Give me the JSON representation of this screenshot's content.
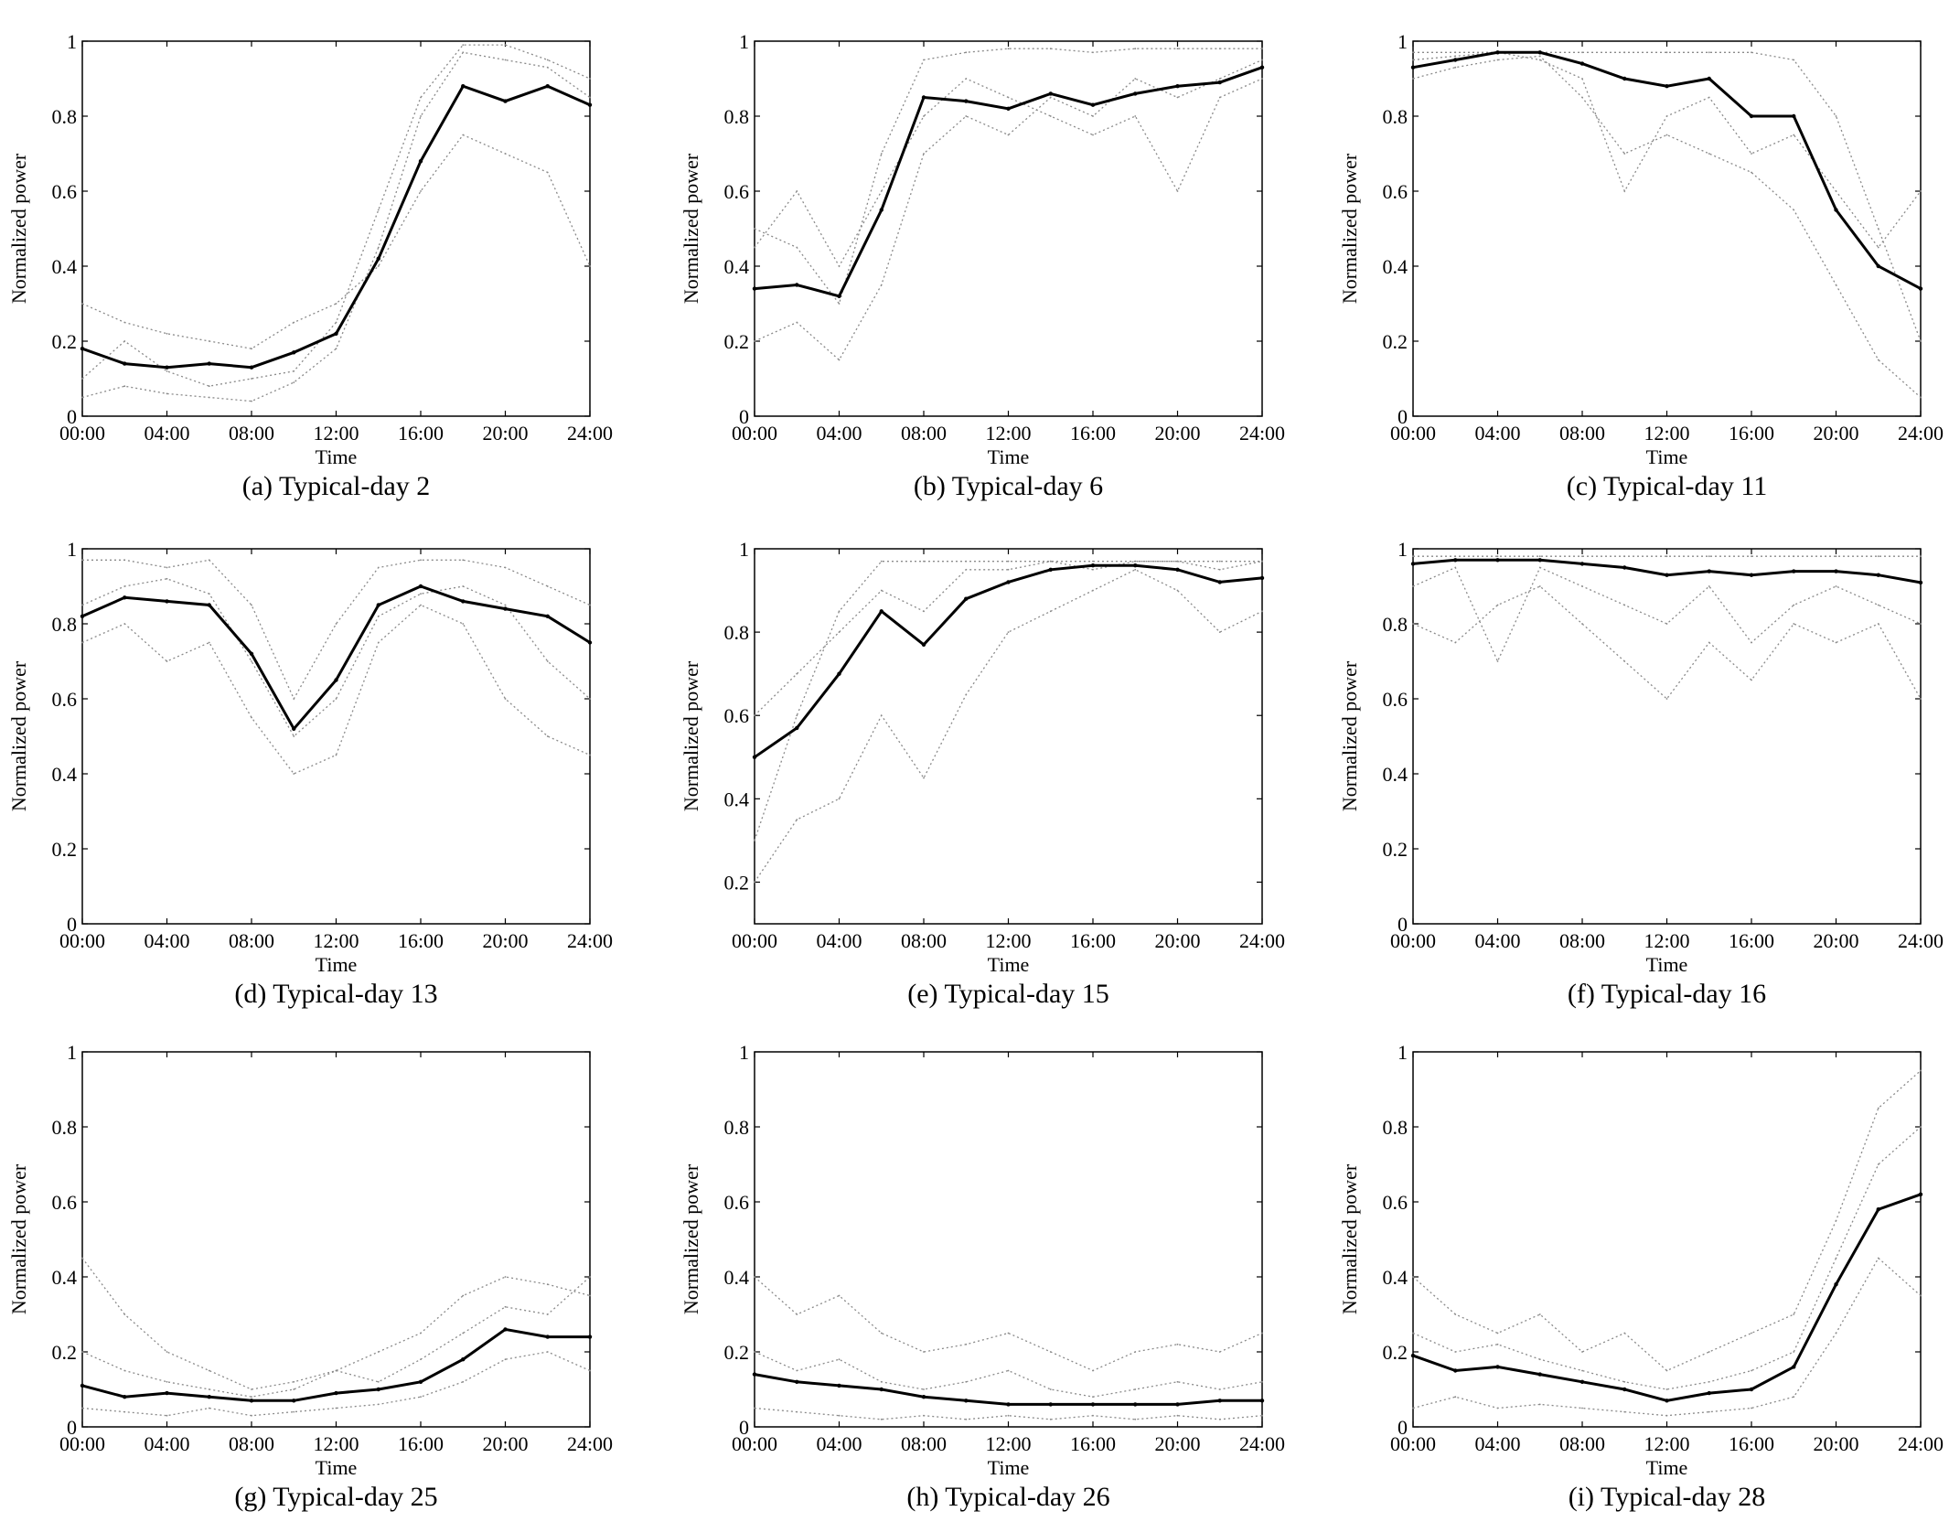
{
  "figure": {
    "panels": [
      {
        "caption": "(a) Typical-day 2",
        "ylabel": "Normalized power",
        "xlabel": "Time"
      },
      {
        "caption": "(b) Typical-day 6",
        "ylabel": "Normalized power",
        "xlabel": "Time"
      },
      {
        "caption": "(c) Typical-day 11",
        "ylabel": "Normalized power",
        "xlabel": "Time"
      },
      {
        "caption": "(d) Typical-day 13",
        "ylabel": "Normalized power",
        "xlabel": "Time"
      },
      {
        "caption": "(e) Typical-day 15",
        "ylabel": "Normalized power",
        "xlabel": "Time"
      },
      {
        "caption": "(f) Typical-day 16",
        "ylabel": "Normalized power",
        "xlabel": "Time"
      },
      {
        "caption": "(g) Typical-day 25",
        "ylabel": "Normalized power",
        "xlabel": "Time"
      },
      {
        "caption": "(h) Typical-day 26",
        "ylabel": "Normalized power",
        "xlabel": "Time"
      },
      {
        "caption": "(i) Typical-day 28",
        "ylabel": "Normalized power",
        "xlabel": "Time"
      }
    ],
    "colors": {
      "typical_line": "#000000",
      "scenario_lines": "#8a8a8a",
      "axes": "#000000"
    }
  },
  "chart_data": [
    {
      "type": "line",
      "title": "(a) Typical-day 2",
      "xlabel": "Time",
      "ylabel": "Normalized power",
      "x": [
        "00:00",
        "02:00",
        "04:00",
        "06:00",
        "08:00",
        "10:00",
        "12:00",
        "14:00",
        "16:00",
        "18:00",
        "20:00",
        "22:00",
        "24:00"
      ],
      "x_ticks": [
        "00:00",
        "04:00",
        "08:00",
        "12:00",
        "16:00",
        "20:00",
        "24:00"
      ],
      "y_ticks": [
        "0",
        "0.2",
        "0.4",
        "0.6",
        "0.8",
        "1"
      ],
      "ylim": [
        0,
        1
      ],
      "grid": false,
      "series": [
        {
          "style": "solid-bold",
          "values": [
            0.18,
            0.14,
            0.13,
            0.14,
            0.13,
            0.17,
            0.22,
            0.42,
            0.68,
            0.88,
            0.84,
            0.88,
            0.83
          ]
        },
        {
          "style": "dotted",
          "values": [
            0.05,
            0.08,
            0.06,
            0.05,
            0.04,
            0.09,
            0.18,
            0.45,
            0.8,
            0.97,
            0.95,
            0.93,
            0.85
          ]
        },
        {
          "style": "dotted",
          "values": [
            0.3,
            0.25,
            0.22,
            0.2,
            0.18,
            0.25,
            0.3,
            0.4,
            0.6,
            0.75,
            0.7,
            0.65,
            0.4
          ]
        },
        {
          "style": "dotted",
          "values": [
            0.1,
            0.2,
            0.12,
            0.08,
            0.1,
            0.12,
            0.25,
            0.55,
            0.85,
            0.99,
            0.99,
            0.95,
            0.9
          ]
        }
      ]
    },
    {
      "type": "line",
      "title": "(b) Typical-day 6",
      "xlabel": "Time",
      "ylabel": "Normalized power",
      "x": [
        "00:00",
        "02:00",
        "04:00",
        "06:00",
        "08:00",
        "10:00",
        "12:00",
        "14:00",
        "16:00",
        "18:00",
        "20:00",
        "22:00",
        "24:00"
      ],
      "x_ticks": [
        "00:00",
        "04:00",
        "08:00",
        "12:00",
        "16:00",
        "20:00",
        "24:00"
      ],
      "y_ticks": [
        "0",
        "0.2",
        "0.4",
        "0.6",
        "0.8",
        "1"
      ],
      "ylim": [
        0,
        1
      ],
      "grid": false,
      "series": [
        {
          "style": "solid-bold",
          "values": [
            0.34,
            0.35,
            0.32,
            0.55,
            0.85,
            0.84,
            0.82,
            0.86,
            0.83,
            0.86,
            0.88,
            0.89,
            0.93
          ]
        },
        {
          "style": "dotted",
          "values": [
            0.5,
            0.45,
            0.3,
            0.7,
            0.95,
            0.97,
            0.98,
            0.98,
            0.97,
            0.98,
            0.98,
            0.98,
            0.98
          ]
        },
        {
          "style": "dotted",
          "values": [
            0.2,
            0.25,
            0.15,
            0.35,
            0.7,
            0.8,
            0.75,
            0.85,
            0.8,
            0.9,
            0.85,
            0.9,
            0.95
          ]
        },
        {
          "style": "dotted",
          "values": [
            0.45,
            0.6,
            0.4,
            0.6,
            0.8,
            0.9,
            0.85,
            0.8,
            0.75,
            0.8,
            0.6,
            0.85,
            0.9
          ]
        }
      ]
    },
    {
      "type": "line",
      "title": "(c) Typical-day 11",
      "xlabel": "Time",
      "ylabel": "Normalized power",
      "x": [
        "00:00",
        "02:00",
        "04:00",
        "06:00",
        "08:00",
        "10:00",
        "12:00",
        "14:00",
        "16:00",
        "18:00",
        "20:00",
        "22:00",
        "24:00"
      ],
      "x_ticks": [
        "00:00",
        "04:00",
        "08:00",
        "12:00",
        "16:00",
        "20:00",
        "24:00"
      ],
      "y_ticks": [
        "0",
        "0.2",
        "0.4",
        "0.6",
        "0.8",
        "1"
      ],
      "ylim": [
        0,
        1
      ],
      "grid": false,
      "series": [
        {
          "style": "solid-bold",
          "values": [
            0.93,
            0.95,
            0.97,
            0.97,
            0.94,
            0.9,
            0.88,
            0.9,
            0.8,
            0.8,
            0.55,
            0.4,
            0.34
          ]
        },
        {
          "style": "dotted",
          "values": [
            0.97,
            0.97,
            0.97,
            0.97,
            0.97,
            0.97,
            0.97,
            0.97,
            0.97,
            0.95,
            0.8,
            0.5,
            0.2
          ]
        },
        {
          "style": "dotted",
          "values": [
            0.9,
            0.93,
            0.95,
            0.96,
            0.85,
            0.7,
            0.75,
            0.7,
            0.65,
            0.55,
            0.35,
            0.15,
            0.05
          ]
        },
        {
          "style": "dotted",
          "values": [
            0.95,
            0.96,
            0.97,
            0.95,
            0.9,
            0.6,
            0.8,
            0.85,
            0.7,
            0.75,
            0.6,
            0.45,
            0.6
          ]
        }
      ]
    },
    {
      "type": "line",
      "title": "(d) Typical-day 13",
      "xlabel": "Time",
      "ylabel": "Normalized power",
      "x": [
        "00:00",
        "02:00",
        "04:00",
        "06:00",
        "08:00",
        "10:00",
        "12:00",
        "14:00",
        "16:00",
        "18:00",
        "20:00",
        "22:00",
        "24:00"
      ],
      "x_ticks": [
        "00:00",
        "04:00",
        "08:00",
        "12:00",
        "16:00",
        "20:00",
        "24:00"
      ],
      "y_ticks": [
        "0",
        "0.2",
        "0.4",
        "0.6",
        "0.8",
        "1"
      ],
      "ylim": [
        0,
        1
      ],
      "grid": false,
      "series": [
        {
          "style": "solid-bold",
          "values": [
            0.82,
            0.87,
            0.86,
            0.85,
            0.72,
            0.52,
            0.65,
            0.85,
            0.9,
            0.86,
            0.84,
            0.82,
            0.75
          ]
        },
        {
          "style": "dotted",
          "values": [
            0.97,
            0.97,
            0.95,
            0.97,
            0.85,
            0.6,
            0.8,
            0.95,
            0.97,
            0.97,
            0.95,
            0.9,
            0.85
          ]
        },
        {
          "style": "dotted",
          "values": [
            0.75,
            0.8,
            0.7,
            0.75,
            0.55,
            0.4,
            0.45,
            0.75,
            0.85,
            0.8,
            0.6,
            0.5,
            0.45
          ]
        },
        {
          "style": "dotted",
          "values": [
            0.85,
            0.9,
            0.92,
            0.88,
            0.7,
            0.5,
            0.6,
            0.82,
            0.88,
            0.9,
            0.85,
            0.7,
            0.6
          ]
        }
      ]
    },
    {
      "type": "line",
      "title": "(e) Typical-day 15",
      "xlabel": "Time",
      "ylabel": "Normalized power",
      "x": [
        "00:00",
        "02:00",
        "04:00",
        "06:00",
        "08:00",
        "10:00",
        "12:00",
        "14:00",
        "16:00",
        "18:00",
        "20:00",
        "22:00",
        "24:00"
      ],
      "x_ticks": [
        "00:00",
        "04:00",
        "08:00",
        "12:00",
        "16:00",
        "20:00",
        "24:00"
      ],
      "y_ticks": [
        "0.2",
        "0.4",
        "0.6",
        "0.8",
        "1"
      ],
      "ylim": [
        0.1,
        1
      ],
      "grid": false,
      "series": [
        {
          "style": "solid-bold",
          "values": [
            0.5,
            0.57,
            0.7,
            0.85,
            0.77,
            0.88,
            0.92,
            0.95,
            0.96,
            0.96,
            0.95,
            0.92,
            0.93
          ]
        },
        {
          "style": "dotted",
          "values": [
            0.3,
            0.6,
            0.85,
            0.97,
            0.97,
            0.97,
            0.97,
            0.97,
            0.97,
            0.97,
            0.97,
            0.97,
            0.97
          ]
        },
        {
          "style": "dotted",
          "values": [
            0.2,
            0.35,
            0.4,
            0.6,
            0.45,
            0.65,
            0.8,
            0.85,
            0.9,
            0.95,
            0.9,
            0.8,
            0.85
          ]
        },
        {
          "style": "dotted",
          "values": [
            0.6,
            0.7,
            0.8,
            0.9,
            0.85,
            0.95,
            0.95,
            0.97,
            0.95,
            0.97,
            0.97,
            0.95,
            0.97
          ]
        }
      ]
    },
    {
      "type": "line",
      "title": "(f) Typical-day 16",
      "xlabel": "Time",
      "ylabel": "Normalized power",
      "x": [
        "00:00",
        "02:00",
        "04:00",
        "06:00",
        "08:00",
        "10:00",
        "12:00",
        "14:00",
        "16:00",
        "18:00",
        "20:00",
        "22:00",
        "24:00"
      ],
      "x_ticks": [
        "00:00",
        "04:00",
        "08:00",
        "12:00",
        "16:00",
        "20:00",
        "24:00"
      ],
      "y_ticks": [
        "0",
        "0.2",
        "0.4",
        "0.6",
        "0.8",
        "1"
      ],
      "ylim": [
        0,
        1
      ],
      "grid": false,
      "series": [
        {
          "style": "solid-bold",
          "values": [
            0.96,
            0.97,
            0.97,
            0.97,
            0.96,
            0.95,
            0.93,
            0.94,
            0.93,
            0.94,
            0.94,
            0.93,
            0.91
          ]
        },
        {
          "style": "dotted",
          "values": [
            0.98,
            0.98,
            0.98,
            0.98,
            0.98,
            0.98,
            0.98,
            0.98,
            0.98,
            0.98,
            0.98,
            0.98,
            0.98
          ]
        },
        {
          "style": "dotted",
          "values": [
            0.8,
            0.75,
            0.85,
            0.9,
            0.8,
            0.7,
            0.6,
            0.75,
            0.65,
            0.8,
            0.75,
            0.8,
            0.6
          ]
        },
        {
          "style": "dotted",
          "values": [
            0.9,
            0.95,
            0.7,
            0.95,
            0.9,
            0.85,
            0.8,
            0.9,
            0.75,
            0.85,
            0.9,
            0.85,
            0.8
          ]
        }
      ]
    },
    {
      "type": "line",
      "title": "(g) Typical-day 25",
      "xlabel": "Time",
      "ylabel": "Normalized power",
      "x": [
        "00:00",
        "02:00",
        "04:00",
        "06:00",
        "08:00",
        "10:00",
        "12:00",
        "14:00",
        "16:00",
        "18:00",
        "20:00",
        "22:00",
        "24:00"
      ],
      "x_ticks": [
        "00:00",
        "04:00",
        "08:00",
        "12:00",
        "16:00",
        "20:00",
        "24:00"
      ],
      "y_ticks": [
        "0",
        "0.2",
        "0.4",
        "0.6",
        "0.8",
        "1"
      ],
      "ylim": [
        0,
        1
      ],
      "grid": false,
      "series": [
        {
          "style": "solid-bold",
          "values": [
            0.11,
            0.08,
            0.09,
            0.08,
            0.07,
            0.07,
            0.09,
            0.1,
            0.12,
            0.18,
            0.26,
            0.24,
            0.24
          ]
        },
        {
          "style": "dotted",
          "values": [
            0.45,
            0.3,
            0.2,
            0.15,
            0.1,
            0.12,
            0.15,
            0.2,
            0.25,
            0.35,
            0.4,
            0.38,
            0.35
          ]
        },
        {
          "style": "dotted",
          "values": [
            0.05,
            0.04,
            0.03,
            0.05,
            0.03,
            0.04,
            0.05,
            0.06,
            0.08,
            0.12,
            0.18,
            0.2,
            0.15
          ]
        },
        {
          "style": "dotted",
          "values": [
            0.2,
            0.15,
            0.12,
            0.1,
            0.08,
            0.1,
            0.15,
            0.12,
            0.18,
            0.25,
            0.32,
            0.3,
            0.4
          ]
        }
      ]
    },
    {
      "type": "line",
      "title": "(h) Typical-day 26",
      "xlabel": "Time",
      "ylabel": "Normalized power",
      "x": [
        "00:00",
        "02:00",
        "04:00",
        "06:00",
        "08:00",
        "10:00",
        "12:00",
        "14:00",
        "16:00",
        "18:00",
        "20:00",
        "22:00",
        "24:00"
      ],
      "x_ticks": [
        "00:00",
        "04:00",
        "08:00",
        "12:00",
        "16:00",
        "20:00",
        "24:00"
      ],
      "y_ticks": [
        "0",
        "0.2",
        "0.4",
        "0.6",
        "0.8",
        "1"
      ],
      "ylim": [
        0,
        1
      ],
      "grid": false,
      "series": [
        {
          "style": "solid-bold",
          "values": [
            0.14,
            0.12,
            0.11,
            0.1,
            0.08,
            0.07,
            0.06,
            0.06,
            0.06,
            0.06,
            0.06,
            0.07,
            0.07
          ]
        },
        {
          "style": "dotted",
          "values": [
            0.4,
            0.3,
            0.35,
            0.25,
            0.2,
            0.22,
            0.25,
            0.2,
            0.15,
            0.2,
            0.22,
            0.2,
            0.25
          ]
        },
        {
          "style": "dotted",
          "values": [
            0.05,
            0.04,
            0.03,
            0.02,
            0.03,
            0.02,
            0.03,
            0.02,
            0.03,
            0.02,
            0.03,
            0.02,
            0.03
          ]
        },
        {
          "style": "dotted",
          "values": [
            0.2,
            0.15,
            0.18,
            0.12,
            0.1,
            0.12,
            0.15,
            0.1,
            0.08,
            0.1,
            0.12,
            0.1,
            0.12
          ]
        }
      ]
    },
    {
      "type": "line",
      "title": "(i) Typical-day 28",
      "xlabel": "Time",
      "ylabel": "Normalized power",
      "x": [
        "00:00",
        "02:00",
        "04:00",
        "06:00",
        "08:00",
        "10:00",
        "12:00",
        "14:00",
        "16:00",
        "18:00",
        "20:00",
        "22:00",
        "24:00"
      ],
      "x_ticks": [
        "00:00",
        "04:00",
        "08:00",
        "12:00",
        "16:00",
        "20:00",
        "24:00"
      ],
      "y_ticks": [
        "0",
        "0.2",
        "0.4",
        "0.6",
        "0.8",
        "1"
      ],
      "ylim": [
        0,
        1
      ],
      "grid": false,
      "series": [
        {
          "style": "solid-bold",
          "values": [
            0.19,
            0.15,
            0.16,
            0.14,
            0.12,
            0.1,
            0.07,
            0.09,
            0.1,
            0.16,
            0.38,
            0.58,
            0.62
          ]
        },
        {
          "style": "dotted",
          "values": [
            0.4,
            0.3,
            0.25,
            0.3,
            0.2,
            0.25,
            0.15,
            0.2,
            0.25,
            0.3,
            0.55,
            0.85,
            0.95
          ]
        },
        {
          "style": "dotted",
          "values": [
            0.05,
            0.08,
            0.05,
            0.06,
            0.05,
            0.04,
            0.03,
            0.04,
            0.05,
            0.08,
            0.25,
            0.45,
            0.35
          ]
        },
        {
          "style": "dotted",
          "values": [
            0.25,
            0.2,
            0.22,
            0.18,
            0.15,
            0.12,
            0.1,
            0.12,
            0.15,
            0.2,
            0.45,
            0.7,
            0.8
          ]
        }
      ]
    }
  ]
}
